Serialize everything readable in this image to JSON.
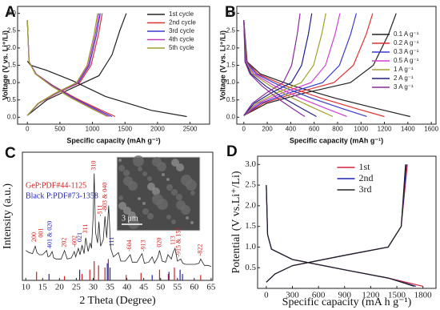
{
  "chart_data": [
    {
      "type": "line",
      "panel_label": "A",
      "xlabel": "Specific capacity (mAh g⁻¹)",
      "ylabel": "Voltage (V vs. Li⁺/Li)",
      "xlim": [
        -150,
        2800
      ],
      "ylim": [
        -0.2,
        3.2
      ],
      "xticks": [
        0,
        500,
        1000,
        1500,
        2000,
        2500
      ],
      "yticks": [
        {
          "value": 0,
          "label": "0.0"
        },
        0.5,
        {
          "value": 1,
          "label": "1.0"
        },
        1.5,
        {
          "value": 2,
          "label": "2.0"
        },
        2.5,
        {
          "value": 3,
          "label": "3.0"
        }
      ],
      "legend": "upper right",
      "series": [
        {
          "name": "1st cycle",
          "color": "#222222",
          "x": [
            0,
            50,
            300,
            700,
            1200,
            1900,
            2450,
            null,
            0,
            300,
            700,
            1100,
            1300,
            1420,
            1520
          ],
          "values": [
            1.62,
            1.5,
            1.35,
            1.05,
            0.6,
            0.2,
            0.02,
            null,
            0.05,
            0.5,
            0.85,
            1.2,
            1.8,
            2.5,
            3.0
          ]
        },
        {
          "name": "2nd cycle",
          "color": "#e03030",
          "x": [
            0,
            27,
            135,
            405,
            743,
            1080,
            1350,
            null,
            0,
            173,
            460,
            805,
            978,
            1093,
            1150
          ],
          "values": [
            2.8,
            1.6,
            1.25,
            0.9,
            0.55,
            0.25,
            0.02,
            null,
            0.05,
            0.4,
            0.7,
            1.0,
            1.5,
            2.4,
            3.0
          ]
        },
        {
          "name": "3rd cycle",
          "color": "#3a3ad0",
          "x": [
            0,
            26,
            130,
            390,
            715,
            1040,
            1300,
            null,
            0,
            168,
            448,
            784,
            952,
            1064,
            1120
          ],
          "values": [
            2.8,
            1.6,
            1.25,
            0.9,
            0.55,
            0.25,
            0.02,
            null,
            0.05,
            0.4,
            0.7,
            1.0,
            1.5,
            2.4,
            3.0
          ]
        },
        {
          "name": "4th cycle",
          "color": "#c040c0",
          "x": [
            0,
            25,
            126,
            378,
            693,
            1008,
            1260,
            null,
            0,
            165,
            440,
            770,
            935,
            1045,
            1100
          ],
          "values": [
            2.8,
            1.6,
            1.25,
            0.9,
            0.55,
            0.25,
            0.02,
            null,
            0.05,
            0.4,
            0.7,
            1.0,
            1.5,
            2.4,
            3.0
          ]
        },
        {
          "name": "5th cycle",
          "color": "#a0a030",
          "x": [
            0,
            25,
            123,
            369,
            677,
            984,
            1230,
            null,
            0,
            162,
            432,
            756,
            918,
            1026,
            1080
          ],
          "values": [
            2.8,
            1.6,
            1.25,
            0.9,
            0.55,
            0.25,
            0.02,
            null,
            0.05,
            0.4,
            0.7,
            1.0,
            1.5,
            2.4,
            3.0
          ]
        }
      ]
    },
    {
      "type": "line",
      "panel_label": "B",
      "xlabel": "Specific capacity (mAh g⁻¹)",
      "ylabel": "Voltage (V vs. Li⁺/Li)",
      "xlim": [
        -60,
        1640
      ],
      "ylim": [
        -0.2,
        3.2
      ],
      "xticks": [
        0,
        200,
        400,
        600,
        800,
        1000,
        1200,
        1400,
        1600
      ],
      "yticks": [
        {
          "value": 0,
          "label": "0.0"
        },
        0.5,
        {
          "value": 1,
          "label": "1.0"
        },
        1.5,
        {
          "value": 2,
          "label": "2.0"
        },
        2.5,
        {
          "value": 3,
          "label": "3.0"
        }
      ],
      "legend": "center right",
      "series": [
        {
          "name": "0.1 A g⁻¹",
          "color": "#222222",
          "x": [
            0,
            28,
            142,
            426,
            781,
            1136,
            1420,
            null,
            0,
            195,
            520,
            910,
            1105,
            1235,
            1300
          ],
          "values": [
            2.8,
            1.6,
            1.25,
            0.9,
            0.55,
            0.25,
            0.02,
            null,
            0.05,
            0.4,
            0.7,
            1.0,
            1.5,
            2.4,
            3.0
          ]
        },
        {
          "name": "0.2 A g⁻¹",
          "color": "#e03030",
          "x": [
            0,
            24,
            120,
            360,
            660,
            960,
            1200,
            null,
            0,
            165,
            440,
            770,
            935,
            1045,
            1100
          ],
          "values": [
            2.8,
            1.6,
            1.25,
            0.9,
            0.55,
            0.25,
            0.02,
            null,
            0.05,
            0.4,
            0.7,
            1.0,
            1.5,
            2.4,
            3.0
          ]
        },
        {
          "name": "0.3 A g⁻¹",
          "color": "#3a3ad0",
          "x": [
            0,
            21,
            105,
            315,
            578,
            840,
            1050,
            null,
            0,
            144,
            384,
            672,
            816,
            912,
            960
          ],
          "values": [
            2.8,
            1.6,
            1.25,
            0.9,
            0.55,
            0.25,
            0.02,
            null,
            0.05,
            0.4,
            0.7,
            1.0,
            1.5,
            2.4,
            3.0
          ]
        },
        {
          "name": "0.5 A g⁻¹",
          "color": "#d040d0",
          "x": [
            0,
            18,
            88,
            264,
            484,
            704,
            880,
            null,
            0,
            123,
            328,
            574,
            697,
            779,
            820
          ],
          "values": [
            2.8,
            1.6,
            1.25,
            0.9,
            0.55,
            0.25,
            0.02,
            null,
            0.05,
            0.4,
            0.7,
            1.0,
            1.5,
            2.4,
            3.0
          ]
        },
        {
          "name": "1 A g⁻¹",
          "color": "#a0a030",
          "x": [
            0,
            15,
            76,
            228,
            418,
            608,
            760,
            null,
            0,
            105,
            280,
            490,
            595,
            665,
            700
          ],
          "values": [
            2.8,
            1.6,
            1.25,
            0.9,
            0.55,
            0.25,
            0.02,
            null,
            0.05,
            0.4,
            0.7,
            1.0,
            1.5,
            2.4,
            3.0
          ]
        },
        {
          "name": "2 A g⁻¹",
          "color": "#20208a",
          "x": [
            0,
            12,
            62,
            186,
            341,
            496,
            620,
            null,
            0,
            87,
            232,
            406,
            493,
            551,
            580
          ],
          "values": [
            2.8,
            1.6,
            1.25,
            0.9,
            0.55,
            0.25,
            0.02,
            null,
            0.05,
            0.4,
            0.7,
            1.0,
            1.5,
            2.4,
            3.0
          ]
        },
        {
          "name": "3 A g⁻¹",
          "color": "#8a2a9a",
          "x": [
            0,
            10,
            52,
            156,
            286,
            416,
            520,
            null,
            0,
            72,
            192,
            336,
            408,
            456,
            480
          ],
          "values": [
            2.8,
            1.6,
            1.25,
            0.9,
            0.55,
            0.25,
            0.02,
            null,
            0.05,
            0.4,
            0.7,
            1.0,
            1.5,
            2.4,
            3.0
          ]
        }
      ]
    },
    {
      "type": "xrd",
      "panel_label": "C",
      "xlabel": "2 Theta (Degree)",
      "ylabel": "Intensity (a.u.)",
      "xlim": [
        9,
        65.5
      ],
      "ylim": [
        0,
        120
      ],
      "xticks": [
        10,
        15,
        20,
        25,
        30,
        35,
        40,
        45,
        50,
        55,
        60,
        65
      ],
      "legend": "upper left",
      "inset_label": "3 μm",
      "series": [
        {
          "color": "#222222",
          "x": [
            10,
            11,
            12,
            12.8,
            13.3,
            14,
            15,
            16.2,
            16.6,
            17.2,
            17.8,
            18.3,
            19,
            20.5,
            21.5,
            22.3,
            23.5,
            24.4,
            24.8,
            25.6,
            26.1,
            26.7,
            27.3,
            27.8,
            28.5,
            29.1,
            29.5,
            30.0,
            30.3,
            30.7,
            31.3,
            31.7,
            32.2,
            33.0,
            33.5,
            34.0,
            34.6,
            35.2,
            36,
            37.5,
            38.2,
            39.5,
            41,
            41.6,
            43,
            44.5,
            45.2,
            46.5,
            47.5,
            48.2,
            49.2,
            49.7,
            50.5,
            51.5,
            52.2,
            53.2,
            53.7,
            54.3,
            55,
            56,
            56.6,
            57.5,
            59,
            60.2,
            61.4,
            61.9,
            63,
            64,
            65
          ],
          "values": [
            28,
            26,
            25,
            32,
            26,
            24,
            24,
            28,
            22,
            23,
            27,
            21,
            20,
            20,
            28,
            20,
            21,
            27,
            22,
            30,
            24,
            33,
            25,
            40,
            27,
            35,
            30,
            60,
            100,
            45,
            35,
            55,
            32,
            38,
            60,
            40,
            70,
            30,
            22,
            26,
            18,
            18,
            24,
            17,
            17,
            25,
            16,
            17,
            22,
            16,
            22,
            28,
            18,
            17,
            24,
            20,
            26,
            30,
            18,
            20,
            16,
            15,
            15,
            15,
            16,
            20,
            14,
            14,
            13
          ]
        }
      ],
      "reference_patterns": [
        {
          "name": "GeP:PDF#44-1125",
          "color": "#d02020",
          "x": [
            13.2,
            21.5,
            26.7,
            29.0,
            30.3,
            31.6,
            33.5,
            34.5,
            39.8,
            44.2,
            49.7,
            52.3,
            54.1,
            61.9
          ],
          "values": [
            8,
            4,
            6,
            10,
            18,
            14,
            12,
            20,
            5,
            7,
            10,
            6,
            12,
            5
          ]
        },
        {
          "name": "Black P:PDF#73-1358",
          "color": "#2020c0",
          "x": [
            16.9,
            26.0,
            34.2,
            35.0,
            47.5,
            52.5,
            55.8,
            56.5
          ],
          "values": [
            6,
            10,
            16,
            12,
            5,
            8,
            10,
            6
          ]
        }
      ],
      "annotations": [
        {
          "text": "200",
          "x": 12.6,
          "y": 36,
          "color": "#d02020"
        },
        {
          "text": "001",
          "x": 14.6,
          "y": 40,
          "color": "#d02020"
        },
        {
          "text": "401 & 020",
          "x": 17.2,
          "y": 30,
          "color": "#2020c0"
        },
        {
          "text": "202",
          "x": 21.5,
          "y": 31,
          "color": "#d02020"
        },
        {
          "text": "-602",
          "x": 24.6,
          "y": 31,
          "color": "#d02020"
        },
        {
          "text": "021",
          "x": 26.1,
          "y": 36,
          "color": "#2020c0"
        },
        {
          "text": "311",
          "x": 27.8,
          "y": 44,
          "color": "#d02020"
        },
        {
          "text": "310",
          "x": 30.3,
          "y": 103,
          "color": "#d02020"
        },
        {
          "text": "-511",
          "x": 32.2,
          "y": 60,
          "color": "#d02020"
        },
        {
          "text": "-803 & 040",
          "x": 33.6,
          "y": 64,
          "color": "#d02020"
        },
        {
          "text": "111",
          "x": 35.6,
          "y": 32,
          "color": "#2020c0"
        },
        {
          "text": "-604",
          "x": 40.8,
          "y": 27,
          "color": "#d02020"
        },
        {
          "text": "-913",
          "x": 45,
          "y": 27,
          "color": "#d02020"
        },
        {
          "text": "020",
          "x": 49.7,
          "y": 31,
          "color": "#d02020"
        },
        {
          "text": "113",
          "x": 53.8,
          "y": 33,
          "color": "#d02020"
        },
        {
          "text": "-915 & 151",
          "x": 55.5,
          "y": 22,
          "color": "#d02020"
        },
        {
          "text": "-822",
          "x": 61.9,
          "y": 23,
          "color": "#d02020"
        }
      ]
    },
    {
      "type": "line",
      "panel_label": "D",
      "xlabel": "Specific capacity (mA h g⁻¹)",
      "ylabel": "Potential (V vs.Li⁺/Li)",
      "xlim": [
        -100,
        1950
      ],
      "ylim": [
        0,
        3.2
      ],
      "xticks": [
        0,
        300,
        600,
        900,
        1200,
        1500,
        1800
      ],
      "yticks": [
        0.5,
        {
          "value": 1,
          "label": "1.0"
        },
        1.5,
        {
          "value": 2,
          "label": "2.0"
        },
        2.5,
        {
          "value": 3,
          "label": "3.0"
        }
      ],
      "legend": "upper center",
      "series": [
        {
          "name": "1st",
          "color": "#d0203a",
          "x": [
            0,
            15,
            60,
            300,
            900,
            1400,
            1800,
            null,
            0,
            100,
            300,
            900,
            1400,
            1550,
            1620
          ],
          "values": [
            2.5,
            1.3,
            0.95,
            0.7,
            0.45,
            0.25,
            0.05,
            null,
            0.15,
            0.35,
            0.55,
            0.8,
            1.0,
            1.5,
            3.0
          ]
        },
        {
          "name": "2nd",
          "color": "#2020b0",
          "x": [
            0,
            15,
            60,
            300,
            900,
            1400,
            1720,
            null,
            0,
            100,
            300,
            900,
            1400,
            1550,
            1610
          ],
          "values": [
            2.5,
            1.3,
            0.95,
            0.7,
            0.45,
            0.25,
            0.05,
            null,
            0.15,
            0.35,
            0.55,
            0.8,
            1.0,
            1.5,
            3.0
          ]
        },
        {
          "name": "3rd",
          "color": "#222222",
          "x": [
            0,
            15,
            60,
            300,
            900,
            1400,
            1700,
            null,
            0,
            100,
            300,
            900,
            1400,
            1550,
            1600
          ],
          "values": [
            2.5,
            1.3,
            0.95,
            0.7,
            0.45,
            0.25,
            0.05,
            null,
            0.15,
            0.35,
            0.55,
            0.8,
            1.0,
            1.5,
            3.0
          ]
        }
      ]
    }
  ]
}
